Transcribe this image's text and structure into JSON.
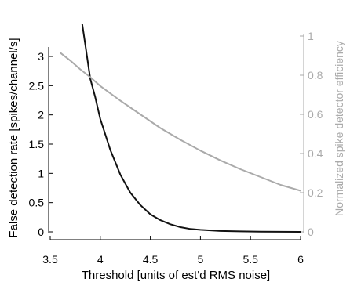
{
  "chart_data": {
    "type": "line",
    "title": "",
    "xlabel": "Threshold [units of est'd RMS noise]",
    "ylabel_left": "False detection rate [spikes/channel/s]",
    "ylabel_right": "Normalized spike detector efficiency",
    "xlim": [
      3.5,
      6
    ],
    "ylim_left": [
      0,
      3.2
    ],
    "ylim_right": [
      0,
      1
    ],
    "x_ticks": [
      3.5,
      4,
      4.5,
      5,
      5.5,
      6
    ],
    "x_tick_labels": [
      "3.5",
      "4",
      "4.5",
      "5",
      "5.5",
      "6"
    ],
    "y_left_ticks": [
      0,
      0.5,
      1,
      1.5,
      2,
      2.5,
      3
    ],
    "y_left_tick_labels": [
      "0",
      "0.5",
      "1",
      "1.5",
      "2",
      "2.5",
      "3"
    ],
    "y_right_ticks": [
      0,
      0.2,
      0.4,
      0.6,
      0.8,
      1
    ],
    "y_right_tick_labels": [
      "0",
      "0.2",
      "0.4",
      "0.6",
      "0.8",
      "1"
    ],
    "grid": false,
    "series": [
      {
        "axis": "left",
        "color": "#111111",
        "x": [
          3.82,
          3.85,
          3.9,
          3.95,
          4.0,
          4.1,
          4.2,
          4.3,
          4.4,
          4.5,
          4.6,
          4.7,
          4.8,
          4.9,
          5.0,
          5.2,
          5.4,
          5.6,
          5.8,
          6.0
        ],
        "y": [
          3.55,
          3.2,
          2.62,
          2.3,
          1.93,
          1.4,
          0.98,
          0.67,
          0.46,
          0.3,
          0.2,
          0.13,
          0.08,
          0.05,
          0.035,
          0.015,
          0.008,
          0.004,
          0.002,
          0.0
        ]
      },
      {
        "axis": "right",
        "color": "#aaaaaa",
        "x": [
          3.6,
          3.7,
          3.8,
          3.9,
          4.0,
          4.2,
          4.4,
          4.6,
          4.8,
          5.0,
          5.2,
          5.4,
          5.6,
          5.8,
          6.0
        ],
        "y": [
          0.915,
          0.875,
          0.83,
          0.79,
          0.745,
          0.67,
          0.6,
          0.53,
          0.47,
          0.415,
          0.365,
          0.32,
          0.28,
          0.24,
          0.21
        ]
      }
    ]
  }
}
